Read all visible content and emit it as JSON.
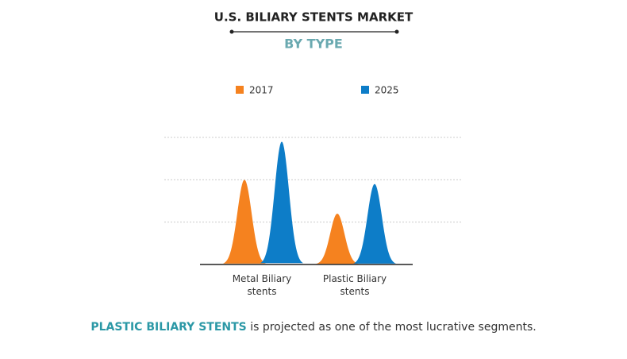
{
  "chart_data": {
    "type": "peak",
    "title": "U.S. BILIARY STENTS MARKET",
    "subtitle": "BY TYPE",
    "categories": [
      "Metal Biliary stents",
      "Plastic Biliary stents"
    ],
    "series": [
      {
        "name": "2017",
        "color": "#f5821f",
        "values": [
          2.0,
          1.2
        ]
      },
      {
        "name": "2025",
        "color": "#0d7dc8",
        "values": [
          2.9,
          1.9
        ]
      }
    ],
    "ylim": [
      0,
      3
    ],
    "yticks": [
      1,
      2,
      3
    ],
    "grid": true,
    "legend": "top"
  },
  "footer": {
    "highlight": "PLASTIC BILIARY STENTS",
    "text": "is projected as one of the most lucrative segments."
  }
}
